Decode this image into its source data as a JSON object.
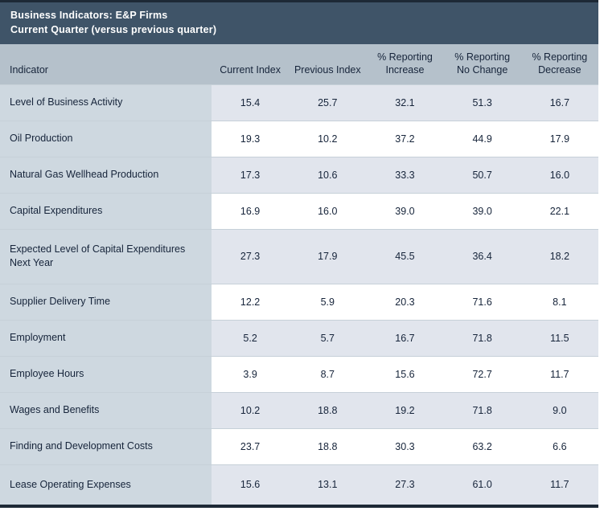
{
  "chart_data": {
    "type": "table",
    "title": "Business Indicators: E&P Firms",
    "subtitle": "Current Quarter (versus previous quarter)",
    "columns": [
      "Indicator",
      "Current Index",
      "Previous Index",
      "% Reporting\nIncrease",
      "% Reporting\nNo Change",
      "% Reporting\nDecrease"
    ],
    "rows": [
      {
        "indicator": "Level of Business Activity",
        "values": [
          "15.4",
          "25.7",
          "32.1",
          "51.3",
          "16.7"
        ]
      },
      {
        "indicator": "Oil Production",
        "values": [
          "19.3",
          "10.2",
          "37.2",
          "44.9",
          "17.9"
        ]
      },
      {
        "indicator": "Natural Gas Wellhead Production",
        "values": [
          "17.3",
          "10.6",
          "33.3",
          "50.7",
          "16.0"
        ]
      },
      {
        "indicator": "Capital Expenditures",
        "values": [
          "16.9",
          "16.0",
          "39.0",
          "39.0",
          "22.1"
        ]
      },
      {
        "indicator": "Expected Level of Capital Expenditures Next Year",
        "values": [
          "27.3",
          "17.9",
          "45.5",
          "36.4",
          "18.2"
        ]
      },
      {
        "indicator": "Supplier Delivery Time",
        "values": [
          "12.2",
          "5.9",
          "20.3",
          "71.6",
          "8.1"
        ]
      },
      {
        "indicator": "Employment",
        "values": [
          "5.2",
          "5.7",
          "16.7",
          "71.8",
          "11.5"
        ]
      },
      {
        "indicator": "Employee Hours",
        "values": [
          "3.9",
          "8.7",
          "15.6",
          "72.7",
          "11.7"
        ]
      },
      {
        "indicator": "Wages and Benefits",
        "values": [
          "10.2",
          "18.8",
          "19.2",
          "71.8",
          "9.0"
        ]
      },
      {
        "indicator": "Finding and Development Costs",
        "values": [
          "23.7",
          "18.8",
          "30.3",
          "63.2",
          "6.6"
        ]
      },
      {
        "indicator": "Lease Operating Expenses",
        "values": [
          "15.6",
          "13.1",
          "27.3",
          "61.0",
          "11.7"
        ]
      }
    ],
    "layout": {
      "zebra_striping": true,
      "indicator_column_shaded": true
    },
    "colors": {
      "frame_border": "#1d2936",
      "title_bar_bg": "#3f5468",
      "title_text": "#ffffff",
      "header_row_bg": "#b5c1cb",
      "indicator_column_bg": "#ced8e0",
      "row_alt_bg": "#e1e5ed",
      "row_bg": "#ffffff",
      "cell_text": "#16243a",
      "row_divider": "#c6d0d8"
    }
  }
}
